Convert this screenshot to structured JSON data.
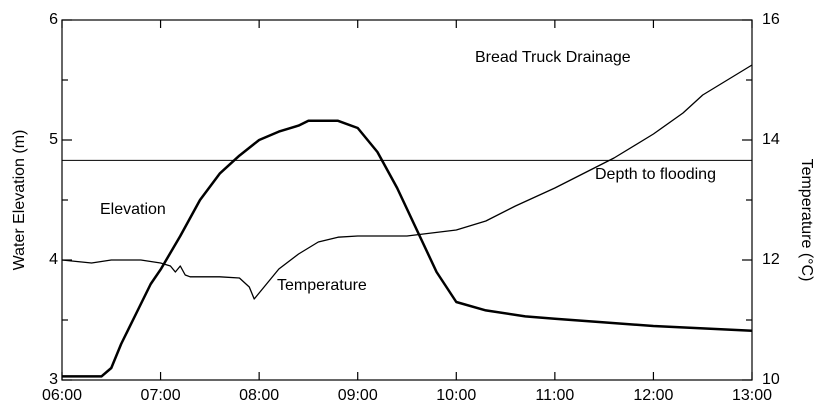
{
  "chart_data": {
    "type": "line",
    "annotations": [
      "Bread Truck Drainage",
      "Depth to flooding",
      "Elevation",
      "Temperature"
    ],
    "ylabel": "Water Elevation (m)",
    "y2label": "Temperature (°C)",
    "xlim": [
      6,
      13
    ],
    "xticks": [
      {
        "value": 6,
        "label": "06:00"
      },
      {
        "value": 7,
        "label": "07:00"
      },
      {
        "value": 8,
        "label": "08:00"
      },
      {
        "value": 9,
        "label": "09:00"
      },
      {
        "value": 10,
        "label": "10:00"
      },
      {
        "value": 11,
        "label": "11:00"
      },
      {
        "value": 12,
        "label": "12:00"
      },
      {
        "value": 13,
        "label": "13:00"
      }
    ],
    "ylim": [
      3,
      6
    ],
    "yticks": [
      3,
      4,
      5,
      6
    ],
    "yminorticks": [
      3.5,
      4.5,
      5.5
    ],
    "y2lim": [
      10,
      16
    ],
    "y2ticks": [
      10,
      12,
      14,
      16
    ],
    "y2minorticks": [
      11,
      13,
      15
    ],
    "flood_level": 4.83,
    "series": [
      {
        "name": "Elevation",
        "color": "#000000",
        "width": 2.5,
        "x": [
          6.0,
          6.4,
          6.5,
          6.6,
          6.75,
          6.9,
          7.0,
          7.2,
          7.4,
          7.6,
          7.8,
          8.0,
          8.2,
          8.4,
          8.5,
          8.8,
          9.0,
          9.2,
          9.4,
          9.6,
          9.8,
          10.0,
          10.3,
          10.7,
          11.0,
          11.5,
          12.0,
          12.5,
          13.0
        ],
        "values": [
          3.03,
          3.03,
          3.1,
          3.3,
          3.55,
          3.8,
          3.92,
          4.2,
          4.5,
          4.72,
          4.87,
          5.0,
          5.07,
          5.12,
          5.16,
          5.16,
          5.1,
          4.9,
          4.6,
          4.25,
          3.9,
          3.65,
          3.58,
          3.53,
          3.51,
          3.48,
          3.45,
          3.43,
          3.41
        ]
      },
      {
        "name": "Temperature",
        "color": "#000000",
        "width": 1.3,
        "axis": "y2",
        "x": [
          6.0,
          6.3,
          6.5,
          6.8,
          7.0,
          7.1,
          7.15,
          7.2,
          7.25,
          7.3,
          7.6,
          7.8,
          7.9,
          7.95,
          8.05,
          8.2,
          8.4,
          8.6,
          8.8,
          9.0,
          9.5,
          10.0,
          10.3,
          10.6,
          11.0,
          11.3,
          11.6,
          12.0,
          12.3,
          12.5,
          12.7,
          13.0
        ],
        "values": [
          12.0,
          11.95,
          12.0,
          12.0,
          11.95,
          11.9,
          11.8,
          11.9,
          11.75,
          11.72,
          11.72,
          11.7,
          11.55,
          11.35,
          11.55,
          11.85,
          12.1,
          12.3,
          12.38,
          12.4,
          12.4,
          12.5,
          12.65,
          12.9,
          13.2,
          13.45,
          13.7,
          14.1,
          14.45,
          14.75,
          14.95,
          15.25
        ]
      }
    ]
  }
}
